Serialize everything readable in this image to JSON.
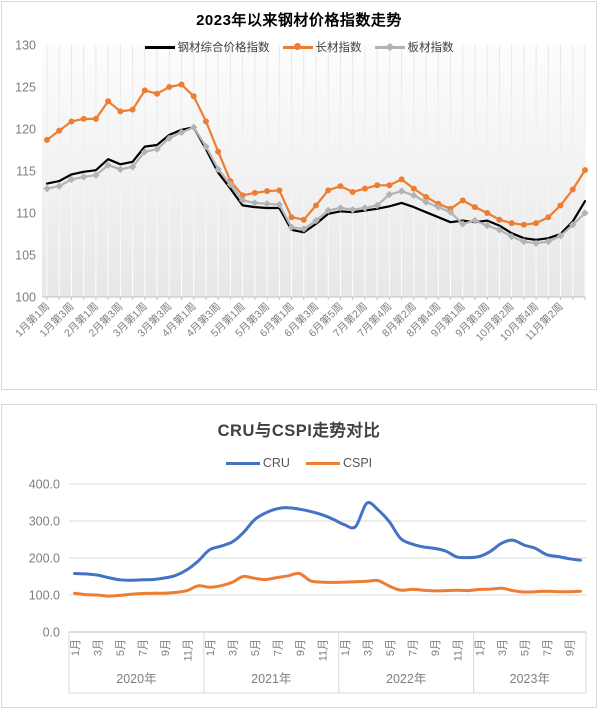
{
  "chart_data": [
    {
      "type": "line",
      "title": "2023年以来钢材价格指数走势",
      "ylim": [
        100,
        130
      ],
      "y_ticks": [
        130,
        125,
        120,
        115,
        110,
        105,
        100
      ],
      "grid": "vertical-drop-lines",
      "legend_position": "top",
      "x_labels": [
        "1月第1周",
        "1月第3周",
        "2月第1周",
        "2月第3周",
        "3月第1周",
        "3月第3周",
        "4月第1周",
        "4月第3周",
        "5月第1周",
        "5月第3周",
        "6月第1周",
        "6月第3周",
        "6月第5周",
        "7月第2周",
        "7月第4周",
        "8月第2周",
        "8月第4周",
        "9月第1周",
        "9月第3周",
        "10月第2周",
        "10月第4周",
        "11月第2周"
      ],
      "label_every": 2,
      "series": [
        {
          "key": "composite",
          "name": "钢材综合价格指数",
          "color": "#000000",
          "marker": "none",
          "values": [
            113.5,
            113.8,
            114.6,
            114.9,
            115.1,
            116.4,
            115.8,
            116.1,
            117.9,
            118.1,
            119.3,
            119.9,
            120.2,
            117.6,
            114.8,
            112.9,
            110.9,
            110.7,
            110.6,
            110.6,
            108.0,
            107.7,
            108.7,
            109.9,
            110.2,
            110.1,
            110.3,
            110.5,
            110.8,
            111.2,
            110.7,
            110.1,
            109.5,
            108.9,
            109.1,
            108.9,
            109.1,
            108.5,
            107.6,
            107.0,
            106.8,
            107.0,
            107.5,
            109.0,
            111.4
          ]
        },
        {
          "key": "long",
          "name": "长材指数",
          "color": "#ED7D31",
          "marker": "circle",
          "values": [
            118.7,
            119.8,
            120.9,
            121.2,
            121.2,
            123.3,
            122.1,
            122.3,
            124.6,
            124.2,
            125.0,
            125.3,
            123.9,
            120.9,
            117.3,
            113.8,
            112.1,
            112.4,
            112.6,
            112.7,
            109.5,
            109.2,
            110.9,
            112.7,
            113.2,
            112.5,
            112.9,
            113.3,
            113.3,
            114.0,
            112.9,
            111.9,
            111.1,
            110.5,
            111.5,
            110.7,
            110.0,
            109.2,
            108.8,
            108.6,
            108.8,
            109.5,
            110.9,
            112.8,
            115.1
          ]
        },
        {
          "key": "plate",
          "name": "板材指数",
          "color": "#b3b3b3",
          "marker": "diamond",
          "values": [
            112.9,
            113.2,
            114.0,
            114.3,
            114.5,
            115.7,
            115.2,
            115.5,
            117.3,
            117.6,
            118.9,
            119.6,
            120.2,
            117.9,
            115.2,
            113.4,
            111.5,
            111.2,
            111.1,
            111.0,
            108.3,
            108.1,
            109.1,
            110.3,
            110.6,
            110.4,
            110.6,
            110.9,
            112.2,
            112.6,
            112.1,
            111.3,
            110.7,
            110.1,
            108.7,
            109.1,
            108.5,
            108.0,
            107.2,
            106.6,
            106.4,
            106.6,
            107.3,
            108.6,
            110.0
          ]
        }
      ],
      "wall_top": "#fdfdfd",
      "wall_bottom": "#e7e7e7",
      "axis_color": "#c0c0c0",
      "label_color": "#7f7f7f"
    },
    {
      "type": "line",
      "title": "CRU与CSPI走势对比",
      "ylim": [
        0,
        400
      ],
      "y_ticks": [
        "400.0",
        "300.0",
        "200.0",
        "100.0",
        "0.0"
      ],
      "grid": "horizontal",
      "legend_position": "top",
      "years": [
        {
          "label": "2020年",
          "n_months": 12,
          "months": [
            "1月",
            "3月",
            "5月",
            "7月",
            "9月",
            "11月"
          ]
        },
        {
          "label": "2021年",
          "n_months": 12,
          "months": [
            "1月",
            "3月",
            "5月",
            "7月",
            "9月",
            "11月"
          ]
        },
        {
          "label": "2022年",
          "n_months": 12,
          "months": [
            "1月",
            "3月",
            "5月",
            "7月",
            "9月",
            "11月"
          ]
        },
        {
          "label": "2023年",
          "n_months": 10,
          "months": [
            "1月",
            "3月",
            "5月",
            "7月",
            "9月"
          ]
        }
      ],
      "series": [
        {
          "key": "cru",
          "name": "CRU",
          "color": "#4472C4",
          "values": [
            158,
            157,
            154,
            147,
            141,
            140,
            141,
            142,
            146,
            153,
            168,
            192,
            222,
            232,
            243,
            268,
            303,
            322,
            333,
            336,
            332,
            326,
            317,
            305,
            290,
            285,
            348,
            330,
            298,
            253,
            238,
            230,
            226,
            219,
            203,
            201,
            204,
            218,
            240,
            248,
            235,
            226,
            209,
            204,
            198,
            194
          ]
        },
        {
          "key": "cspi",
          "name": "CSPI",
          "color": "#ED7D31",
          "values": [
            105,
            101,
            100,
            97,
            99,
            102,
            104,
            105,
            105,
            107,
            112,
            125,
            121,
            125,
            134,
            150,
            145,
            142,
            147,
            152,
            158,
            138,
            135,
            134,
            135,
            136,
            137,
            139,
            124,
            113,
            115,
            113,
            111,
            112,
            113,
            112,
            115,
            116,
            118,
            112,
            108,
            109,
            110,
            109,
            109,
            110
          ]
        }
      ],
      "gridline_color": "#d9d9d9",
      "axis_color": "#bfbfbf",
      "label_color": "#7f7f7f"
    }
  ]
}
